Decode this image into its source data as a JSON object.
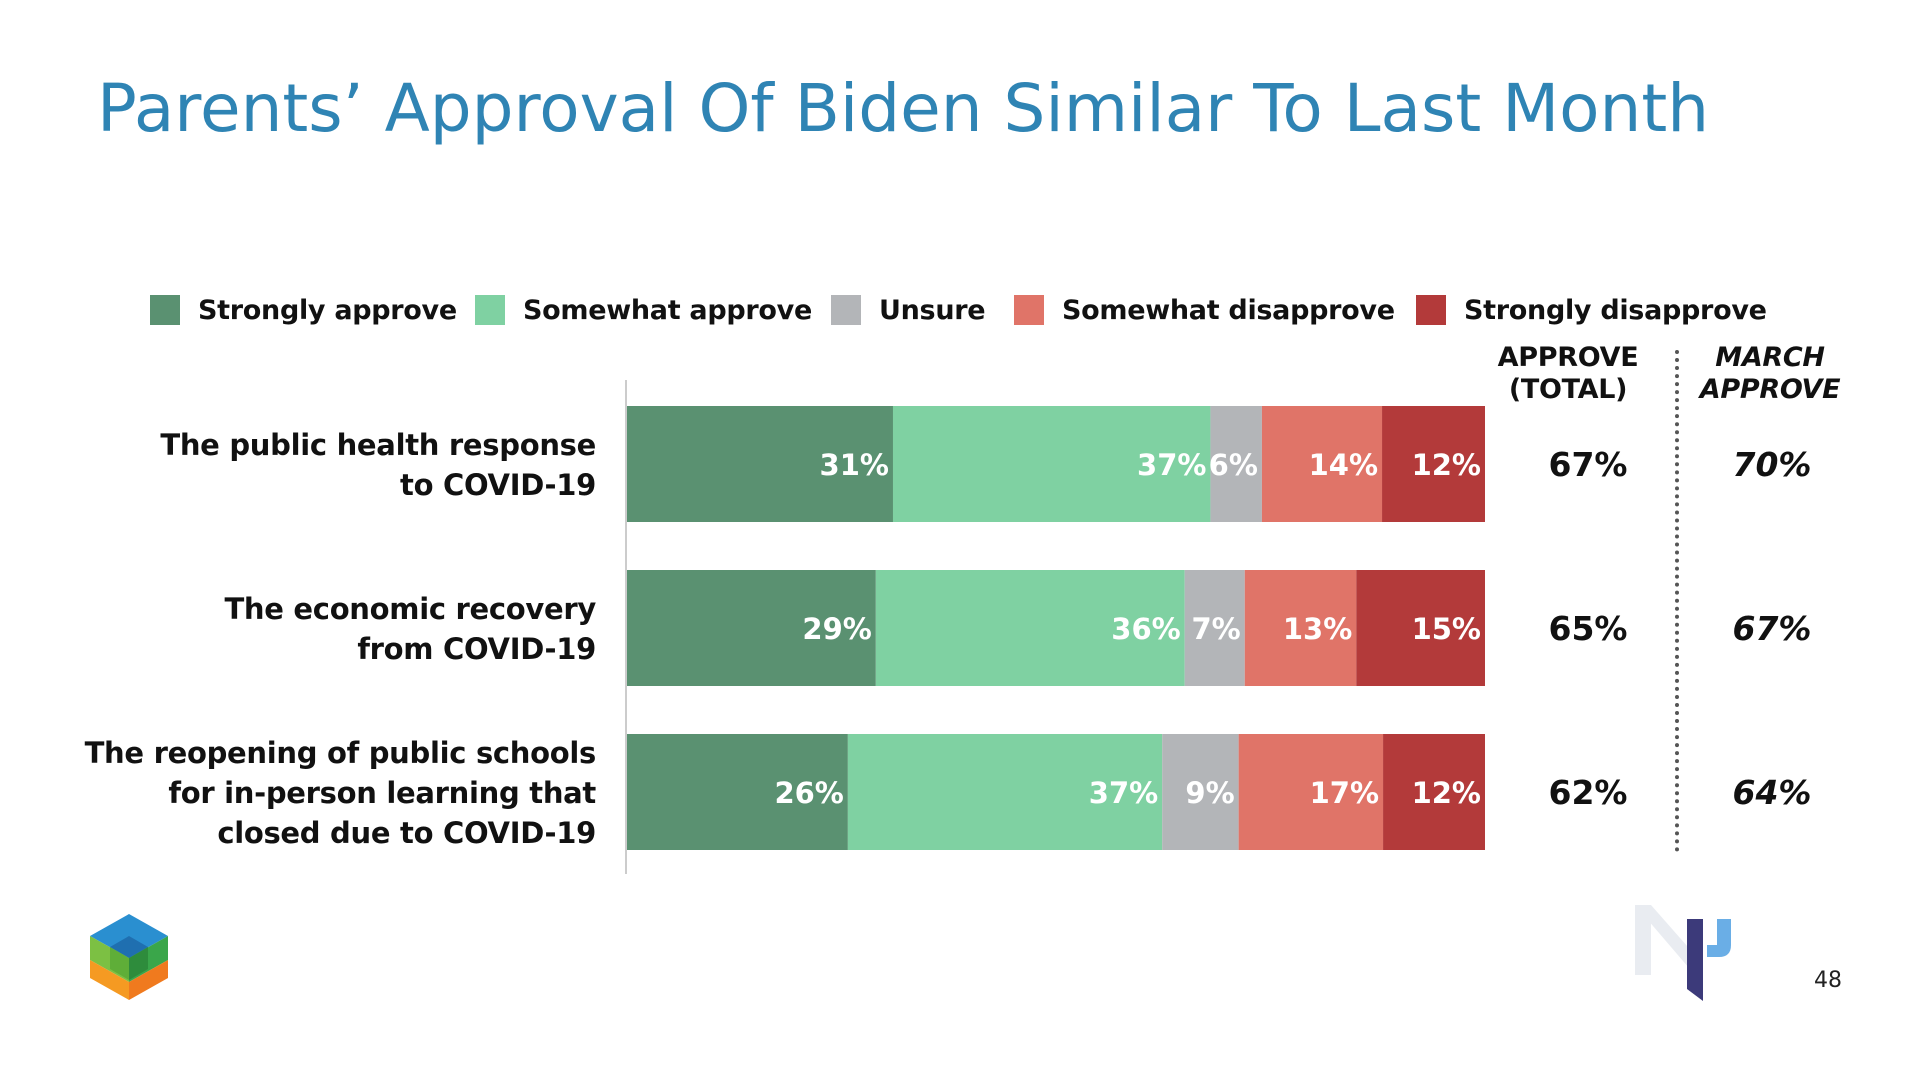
{
  "title": "Parents’ Approval Of Biden Similar To Last Month",
  "legend": [
    {
      "label": "Strongly approve",
      "color": "#5a9171"
    },
    {
      "label": "Somewhat approve",
      "color": "#7fd1a2"
    },
    {
      "label": "Unsure",
      "color": "#b3b5b8"
    },
    {
      "label": "Somewhat disapprove",
      "color": "#e07468"
    },
    {
      "label": "Strongly disapprove",
      "color": "#b33a3a"
    }
  ],
  "columns": {
    "approve_total": {
      "line1": "APPROVE",
      "line2": "(TOTAL)"
    },
    "march_approve": {
      "line1": "MARCH",
      "line2": "APPROVE"
    }
  },
  "rows": [
    {
      "label_lines": [
        "The public health response",
        "to COVID-19"
      ],
      "approve_total": "67%",
      "march_approve": "70%"
    },
    {
      "label_lines": [
        "The economic recovery",
        "from COVID-19"
      ],
      "approve_total": "65%",
      "march_approve": "67%"
    },
    {
      "label_lines": [
        "The reopening of public schools",
        "for in-person learning that",
        "closed due to COVID-19"
      ],
      "approve_total": "62%",
      "march_approve": "64%"
    }
  ],
  "chart_data": {
    "type": "bar",
    "orientation": "horizontal",
    "stacked": true,
    "categories": [
      "The public health response to COVID-19",
      "The economic recovery from COVID-19",
      "The reopening of public schools for in-person learning that closed due to COVID-19"
    ],
    "series": [
      {
        "name": "Strongly approve",
        "color": "#5a9171",
        "values": [
          31,
          29,
          26
        ]
      },
      {
        "name": "Somewhat approve",
        "color": "#7fd1a2",
        "values": [
          37,
          36,
          37
        ]
      },
      {
        "name": "Unsure",
        "color": "#b3b5b8",
        "values": [
          6,
          7,
          9
        ]
      },
      {
        "name": "Somewhat disapprove",
        "color": "#e07468",
        "values": [
          14,
          13,
          17
        ]
      },
      {
        "name": "Strongly disapprove",
        "color": "#b33a3a",
        "values": [
          12,
          15,
          12
        ]
      }
    ],
    "value_suffix": "%",
    "approve_total": [
      67,
      65,
      62
    ],
    "march_approve": [
      70,
      67,
      64
    ],
    "legend_position": "top"
  },
  "page_number": "48"
}
